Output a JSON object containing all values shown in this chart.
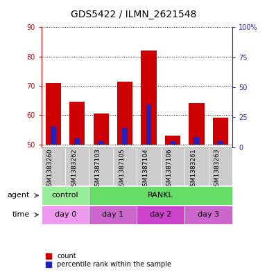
{
  "title": "GDS5422 / ILMN_2621548",
  "samples": [
    "GSM1383260",
    "GSM1383262",
    "GSM1387103",
    "GSM1387105",
    "GSM1387104",
    "GSM1387106",
    "GSM1383261",
    "GSM1383263"
  ],
  "count_values": [
    71.0,
    64.5,
    60.5,
    71.5,
    82.0,
    53.0,
    64.0,
    59.0
  ],
  "percentile_values": [
    56.0,
    52.0,
    51.0,
    55.5,
    63.5,
    51.0,
    52.5,
    51.0
  ],
  "ylim_left": [
    49,
    90
  ],
  "ylim_right": [
    0,
    100
  ],
  "yticks_left": [
    50,
    60,
    70,
    80,
    90
  ],
  "yticks_right": [
    0,
    25,
    50,
    75,
    100
  ],
  "bar_bottom": 50,
  "bar_width": 0.65,
  "red_color": "#cc0000",
  "blue_color": "#2222bb",
  "agent_groups": [
    {
      "label": "control",
      "start": 0,
      "end": 2,
      "color": "#99ee99"
    },
    {
      "label": "RANKL",
      "start": 2,
      "end": 8,
      "color": "#66dd66"
    }
  ],
  "time_groups": [
    {
      "label": "day 0",
      "start": 0,
      "end": 2,
      "color": "#ee99ee"
    },
    {
      "label": "day 1",
      "start": 2,
      "end": 4,
      "color": "#cc66cc"
    },
    {
      "label": "day 2",
      "start": 4,
      "end": 6,
      "color": "#cc44cc"
    },
    {
      "label": "day 3",
      "start": 6,
      "end": 8,
      "color": "#cc66cc"
    }
  ],
  "sample_row_color": "#cccccc",
  "legend_count_label": "count",
  "legend_percentile_label": "percentile rank within the sample",
  "agent_label": "agent",
  "time_label": "time",
  "title_fontsize": 10,
  "tick_fontsize": 7,
  "label_fontsize": 8,
  "sample_fontsize": 6.5,
  "background_color": "#ffffff",
  "grid_color": "#000000"
}
